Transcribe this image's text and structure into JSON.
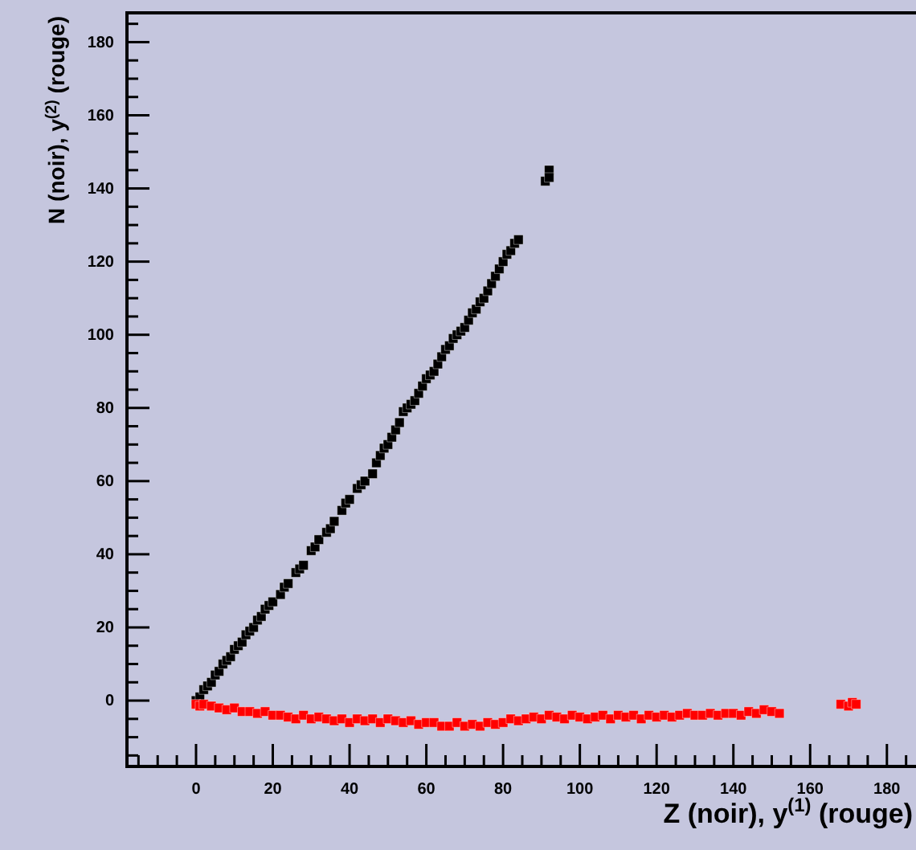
{
  "chart_data": {
    "type": "scatter",
    "xlabel": "Z (noir), y$^{(1)}$ (rouge)",
    "ylabel": "N (noir), y$^{(2)}$ (rouge)",
    "xlim": [
      -18,
      188
    ],
    "ylim": [
      -18,
      188
    ],
    "xticks": [
      {
        "value": -15,
        "label": null
      },
      {
        "value": -10,
        "label": null
      },
      {
        "value": -5,
        "label": null
      },
      0,
      {
        "value": 5,
        "label": null
      },
      {
        "value": 10,
        "label": null
      },
      {
        "value": 15,
        "label": null
      },
      20,
      {
        "value": 25,
        "label": null
      },
      {
        "value": 30,
        "label": null
      },
      {
        "value": 35,
        "label": null
      },
      40,
      {
        "value": 45,
        "label": null
      },
      {
        "value": 50,
        "label": null
      },
      {
        "value": 55,
        "label": null
      },
      60,
      {
        "value": 65,
        "label": null
      },
      {
        "value": 70,
        "label": null
      },
      {
        "value": 75,
        "label": null
      },
      80,
      {
        "value": 85,
        "label": null
      },
      {
        "value": 90,
        "label": null
      },
      {
        "value": 95,
        "label": null
      },
      100,
      {
        "value": 105,
        "label": null
      },
      {
        "value": 110,
        "label": null
      },
      {
        "value": 115,
        "label": null
      },
      120,
      {
        "value": 125,
        "label": null
      },
      {
        "value": 130,
        "label": null
      },
      {
        "value": 135,
        "label": null
      },
      140,
      {
        "value": 145,
        "label": null
      },
      {
        "value": 150,
        "label": null
      },
      {
        "value": 155,
        "label": null
      },
      160,
      {
        "value": 165,
        "label": null
      },
      {
        "value": 170,
        "label": null
      },
      {
        "value": 175,
        "label": null
      },
      180,
      {
        "value": 185,
        "label": null
      }
    ],
    "yticks": [
      {
        "value": -15,
        "label": null
      },
      {
        "value": -10,
        "label": null
      },
      {
        "value": -5,
        "label": null
      },
      0,
      {
        "value": 5,
        "label": null
      },
      {
        "value": 10,
        "label": null
      },
      {
        "value": 15,
        "label": null
      },
      20,
      {
        "value": 25,
        "label": null
      },
      {
        "value": 30,
        "label": null
      },
      {
        "value": 35,
        "label": null
      },
      40,
      {
        "value": 45,
        "label": null
      },
      {
        "value": 50,
        "label": null
      },
      {
        "value": 55,
        "label": null
      },
      60,
      {
        "value": 65,
        "label": null
      },
      {
        "value": 70,
        "label": null
      },
      {
        "value": 75,
        "label": null
      },
      80,
      {
        "value": 85,
        "label": null
      },
      {
        "value": 90,
        "label": null
      },
      {
        "value": 95,
        "label": null
      },
      100,
      {
        "value": 105,
        "label": null
      },
      {
        "value": 110,
        "label": null
      },
      {
        "value": 115,
        "label": null
      },
      120,
      {
        "value": 125,
        "label": null
      },
      {
        "value": 130,
        "label": null
      },
      {
        "value": 135,
        "label": null
      },
      140,
      {
        "value": 145,
        "label": null
      },
      {
        "value": 150,
        "label": null
      },
      {
        "value": 155,
        "label": null
      },
      160,
      {
        "value": 165,
        "label": null
      },
      {
        "value": 170,
        "label": null
      },
      {
        "value": 175,
        "label": null
      },
      180,
      {
        "value": 185,
        "label": null
      }
    ],
    "grid": false,
    "marker": "square",
    "series": [
      {
        "color": "#000000",
        "x": [
          0,
          1,
          2,
          3,
          4,
          5,
          6,
          7,
          8,
          9,
          10,
          11,
          12,
          13,
          14,
          15,
          16,
          17,
          18,
          19,
          20,
          22,
          23,
          24,
          26,
          27,
          28,
          30,
          31,
          32,
          34,
          35,
          36,
          38,
          39,
          40,
          42,
          43,
          44,
          46,
          47,
          48,
          49,
          50,
          51,
          52,
          53,
          54,
          55,
          56,
          57,
          58,
          59,
          60,
          61,
          62,
          63,
          64,
          65,
          66,
          67,
          68,
          69,
          70,
          71,
          72,
          73,
          74,
          75,
          76,
          77,
          78,
          79,
          80,
          81,
          82,
          83,
          84,
          91,
          92,
          92
        ],
        "values": [
          0,
          1,
          3,
          4,
          5,
          7,
          8,
          10,
          11,
          12,
          14,
          15,
          16,
          18,
          19,
          20,
          22,
          23,
          25,
          26,
          27,
          29,
          31,
          32,
          35,
          36,
          37,
          41,
          42,
          44,
          46,
          47,
          49,
          52,
          54,
          55,
          58,
          59,
          60,
          62,
          65,
          67,
          69,
          70,
          72,
          74,
          76,
          79,
          80,
          81,
          82,
          84,
          86,
          88,
          89,
          90,
          92,
          94,
          96,
          97,
          99,
          100,
          101,
          102,
          104,
          106,
          107,
          109,
          110,
          112,
          114,
          116,
          118,
          120,
          122,
          123,
          125,
          126,
          142,
          145,
          143
        ]
      },
      {
        "color": "#ff0000",
        "x": [
          0,
          1,
          2,
          4,
          6,
          8,
          10,
          12,
          14,
          16,
          18,
          20,
          22,
          24,
          26,
          28,
          30,
          32,
          34,
          36,
          38,
          40,
          42,
          44,
          46,
          48,
          50,
          52,
          54,
          56,
          58,
          60,
          62,
          64,
          66,
          68,
          70,
          72,
          74,
          76,
          78,
          80,
          82,
          84,
          86,
          88,
          90,
          92,
          94,
          96,
          98,
          100,
          102,
          104,
          106,
          108,
          110,
          112,
          114,
          116,
          118,
          120,
          122,
          124,
          126,
          128,
          130,
          132,
          134,
          136,
          138,
          140,
          142,
          144,
          146,
          148,
          150,
          152,
          168,
          170,
          171,
          172
        ],
        "values": [
          -1,
          -1.5,
          -1,
          -1.5,
          -2,
          -2.5,
          -2,
          -3,
          -3,
          -3.5,
          -3,
          -4,
          -4,
          -4.5,
          -5,
          -4,
          -5,
          -4.5,
          -5,
          -5.5,
          -5,
          -6,
          -5,
          -5.5,
          -5,
          -6,
          -5,
          -5.5,
          -6,
          -5.5,
          -6.5,
          -6,
          -6,
          -7,
          -7,
          -6,
          -7,
          -6.5,
          -7,
          -6,
          -6.5,
          -6,
          -5,
          -5.5,
          -5,
          -4.5,
          -5,
          -4,
          -4.5,
          -5,
          -4,
          -4.5,
          -5,
          -4.5,
          -4,
          -5,
          -4,
          -4.5,
          -4,
          -5,
          -4,
          -4.5,
          -4,
          -4.5,
          -4,
          -3.5,
          -4,
          -4,
          -3.5,
          -4,
          -3.5,
          -3.5,
          -4,
          -3,
          -3.5,
          -2.5,
          -3,
          -3.5,
          -1,
          -1.5,
          -0.5,
          -1
        ]
      }
    ]
  }
}
